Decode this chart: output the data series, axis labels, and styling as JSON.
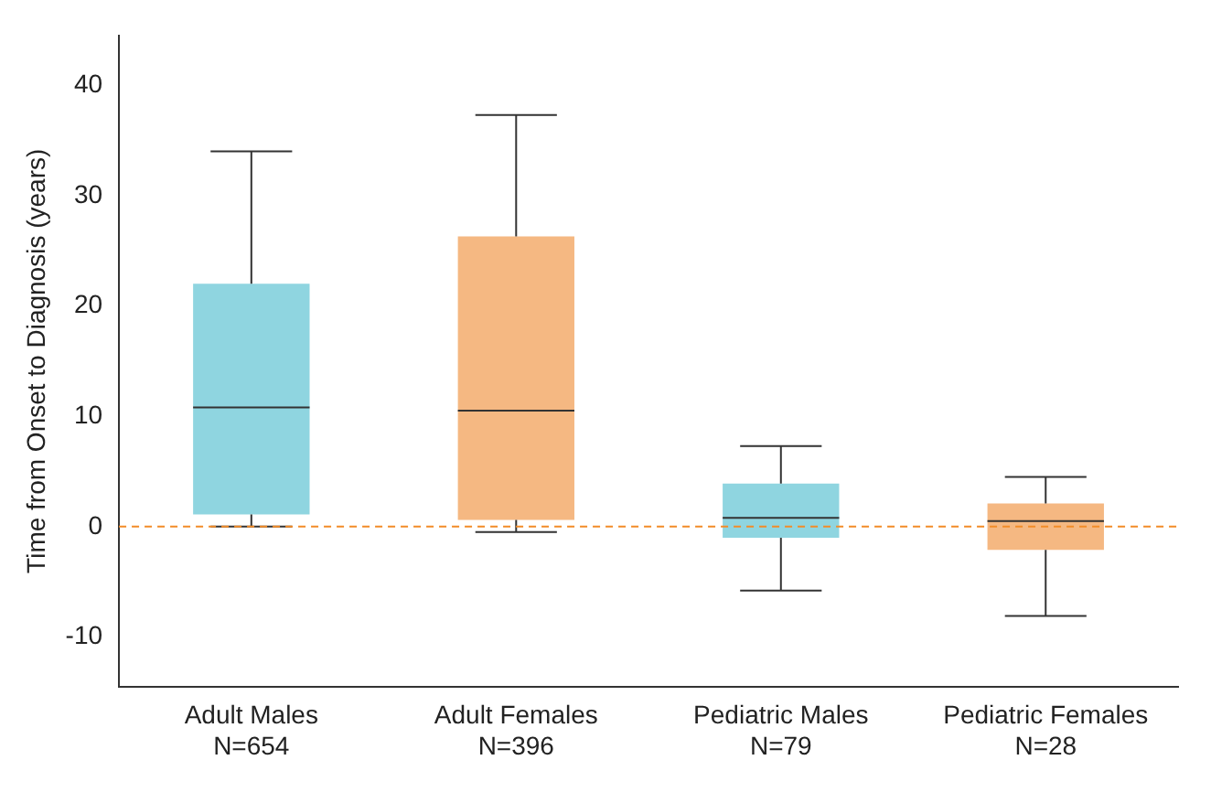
{
  "chart_data": {
    "type": "box",
    "ylabel": "Time from Onset to Diagnosis (years)",
    "categories": [
      "Adult Males\nN=654",
      "Adult Females\nN=396",
      "Pediatric Males\nN=79",
      "Pediatric Females\nN=28"
    ],
    "boxes": [
      {
        "low": 0,
        "q1": 1.1,
        "median": 10.8,
        "q3": 22,
        "high": 34
      },
      {
        "low": -0.5,
        "q1": 0.6,
        "median": 10.5,
        "q3": 26.3,
        "high": 37.3
      },
      {
        "low": -5.8,
        "q1": -1,
        "median": 0.8,
        "q3": 3.9,
        "high": 7.3
      },
      {
        "low": -8.1,
        "q1": -2.1,
        "median": 0.5,
        "q3": 2.1,
        "high": 4.5
      }
    ],
    "colors": [
      "#8fd5e0",
      "#f5b882",
      "#8fd5e0",
      "#f5b882"
    ],
    "ylim": [
      -14.5,
      44.5
    ],
    "yticks": [
      -10,
      0,
      10,
      20,
      30,
      40
    ],
    "grid": false,
    "legend": false,
    "ref_lines": [
      {
        "axis": "y",
        "value": 0,
        "color": "#f28c28",
        "line_style": "dashed"
      }
    ]
  }
}
